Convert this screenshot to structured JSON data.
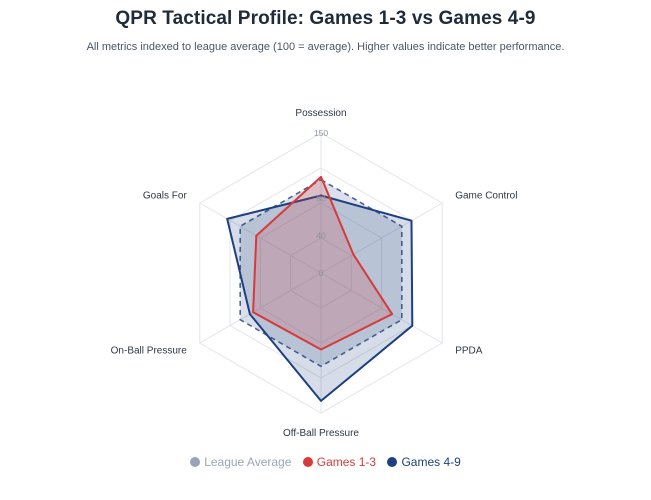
{
  "chart_data": {
    "type": "radar",
    "title": "QPR Tactical Profile: Games 1-3 vs Games 4-9",
    "subtitle": "All metrics indexed to league average (100 = average). Higher values indicate better performance.",
    "axes": [
      "Possession",
      "Game Control",
      "PPDA",
      "Off-Ball Pressure",
      "On-Ball Pressure",
      "Goals For"
    ],
    "rlim": [
      0,
      150
    ],
    "ticks": [
      {
        "value": 0,
        "label": "0"
      },
      {
        "value": 40,
        "label": "40"
      },
      {
        "value": 80,
        "label": "80"
      },
      {
        "value": 150,
        "label": "150"
      }
    ],
    "grid": true,
    "legend_position": "bottom-center",
    "series": [
      {
        "name": "League Average",
        "color": "#4a6394",
        "values": [
          100,
          100,
          100,
          100,
          100,
          100
        ]
      },
      {
        "name": "Games 1-3",
        "color": "#d63a3a",
        "values": [
          103,
          40,
          88,
          82,
          84,
          80
        ]
      },
      {
        "name": "Games 4-9",
        "color": "#1e4080",
        "values": [
          83,
          112,
          113,
          137,
          88,
          116
        ]
      }
    ],
    "legend_colors": [
      "#9aa4b8",
      "#d63a3a",
      "#1e4080"
    ]
  }
}
